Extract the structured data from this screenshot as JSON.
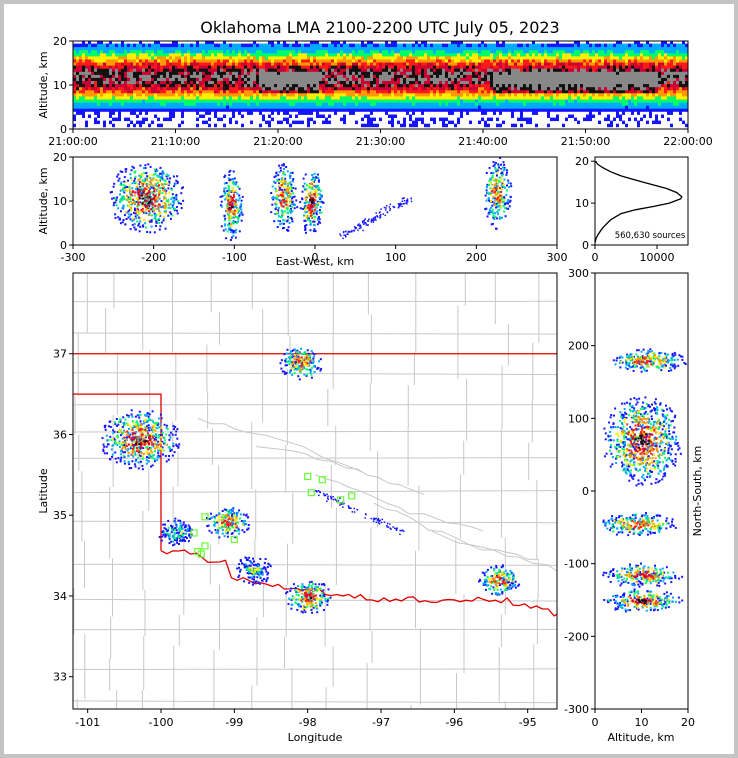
{
  "title": "Oklahoma LMA 2100-2200 UTC July 05, 2023",
  "colors": {
    "ramp": [
      "#1414ff",
      "#00aaff",
      "#00ff66",
      "#ffee00",
      "#ff9900",
      "#ff1a1a",
      "#cc0033",
      "#111111",
      "#888888",
      "#ffffff"
    ],
    "state_line": "#e00000",
    "county_line": "#c8c8c8",
    "station": "#66ff33"
  },
  "chart_data": [
    {
      "type": "heatmap",
      "panel": "time-altitude",
      "xlabel": "",
      "ylabel": "Altitude, km",
      "x_ticks": [
        "21:00:00",
        "21:10:00",
        "21:20:00",
        "21:30:00",
        "21:40:00",
        "21:50:00",
        "22:00:00"
      ],
      "y_ticks": [
        0,
        10,
        20
      ],
      "ylim": [
        0,
        20
      ]
    },
    {
      "type": "heatmap",
      "panel": "east-west-altitude",
      "xlabel": "East-West, km",
      "ylabel": "Altitude, km",
      "x_ticks": [
        -300,
        -200,
        -100,
        0,
        100,
        200,
        300
      ],
      "y_ticks": [
        0,
        10,
        20
      ],
      "xlim": [
        -300,
        300
      ],
      "ylim": [
        0,
        20
      ],
      "clusters": [
        {
          "x": -210,
          "z": 11,
          "intensity": 1.0
        },
        {
          "x": -105,
          "z": 9,
          "intensity": 0.75
        },
        {
          "x": -40,
          "z": 11,
          "intensity": 0.6
        },
        {
          "x": -5,
          "z": 10,
          "intensity": 0.85
        },
        {
          "x": 225,
          "z": 12,
          "intensity": 0.55
        }
      ]
    },
    {
      "type": "line",
      "panel": "altitude-histogram",
      "annotation": "560,630 sources",
      "x_ticks": [
        0,
        10000
      ],
      "y_ticks": [
        0,
        10,
        20
      ],
      "xlim": [
        0,
        15000
      ],
      "ylim": [
        0,
        21
      ],
      "points": [
        [
          0,
          0.5
        ],
        [
          150,
          1.5
        ],
        [
          500,
          2.5
        ],
        [
          1200,
          4
        ],
        [
          2500,
          6
        ],
        [
          4200,
          7.5
        ],
        [
          6500,
          8.4
        ],
        [
          9500,
          9.2
        ],
        [
          12000,
          10
        ],
        [
          13800,
          11
        ],
        [
          14000,
          11.5
        ],
        [
          13200,
          12.5
        ],
        [
          11500,
          13.5
        ],
        [
          9000,
          14.5
        ],
        [
          6500,
          15.5
        ],
        [
          4200,
          16.5
        ],
        [
          2500,
          17.5
        ],
        [
          1200,
          18.5
        ],
        [
          400,
          19.3
        ],
        [
          100,
          20
        ]
      ]
    },
    {
      "type": "heatmap",
      "panel": "plan-view",
      "xlabel": "Longitude",
      "ylabel": "Latitude",
      "x_ticks": [
        -101,
        -100,
        -99,
        -98,
        -97,
        -96,
        -95
      ],
      "y_ticks": [
        33,
        34,
        35,
        36,
        37
      ],
      "xlim": [
        -101.2,
        -94.6
      ],
      "ylim": [
        32.6,
        38.0
      ],
      "clusters": [
        {
          "lon": -100.3,
          "lat": 35.95,
          "intensity": 1.0
        },
        {
          "lon": -98.1,
          "lat": 36.9,
          "intensity": 0.65
        },
        {
          "lon": -99.1,
          "lat": 34.92,
          "intensity": 0.6
        },
        {
          "lon": -98.0,
          "lat": 34.0,
          "intensity": 0.75
        },
        {
          "lon": -95.4,
          "lat": 34.2,
          "intensity": 0.55
        },
        {
          "lon": -98.75,
          "lat": 34.33,
          "intensity": 0.35
        },
        {
          "lon": -99.8,
          "lat": 34.8,
          "intensity": 0.3
        }
      ],
      "stations": [
        [
          -98.0,
          35.48
        ],
        [
          -97.8,
          35.44
        ],
        [
          -97.95,
          35.28
        ],
        [
          -97.55,
          35.19
        ],
        [
          -97.4,
          35.24
        ],
        [
          -99.4,
          34.98
        ],
        [
          -99.55,
          34.78
        ],
        [
          -99.4,
          34.62
        ],
        [
          -99.5,
          34.55
        ],
        [
          -99.45,
          34.52
        ],
        [
          -99.0,
          34.7
        ]
      ]
    },
    {
      "type": "heatmap",
      "panel": "altitude-north-south",
      "xlabel": "Altitude, km",
      "ylabel": "North-South, km",
      "x_ticks": [
        0,
        10,
        20
      ],
      "y_ticks": [
        -300,
        -200,
        -100,
        0,
        100,
        200,
        300
      ],
      "xlim": [
        0,
        20
      ],
      "ylim": [
        -300,
        300
      ],
      "clusters": [
        {
          "z": 11,
          "y": 180,
          "intensity": 0.55
        },
        {
          "z": 10,
          "y": 70,
          "intensity": 1.0
        },
        {
          "z": 9,
          "y": -45,
          "intensity": 0.6
        },
        {
          "z": 10,
          "y": -115,
          "intensity": 0.7
        },
        {
          "z": 10,
          "y": -150,
          "intensity": 0.8
        }
      ]
    }
  ]
}
